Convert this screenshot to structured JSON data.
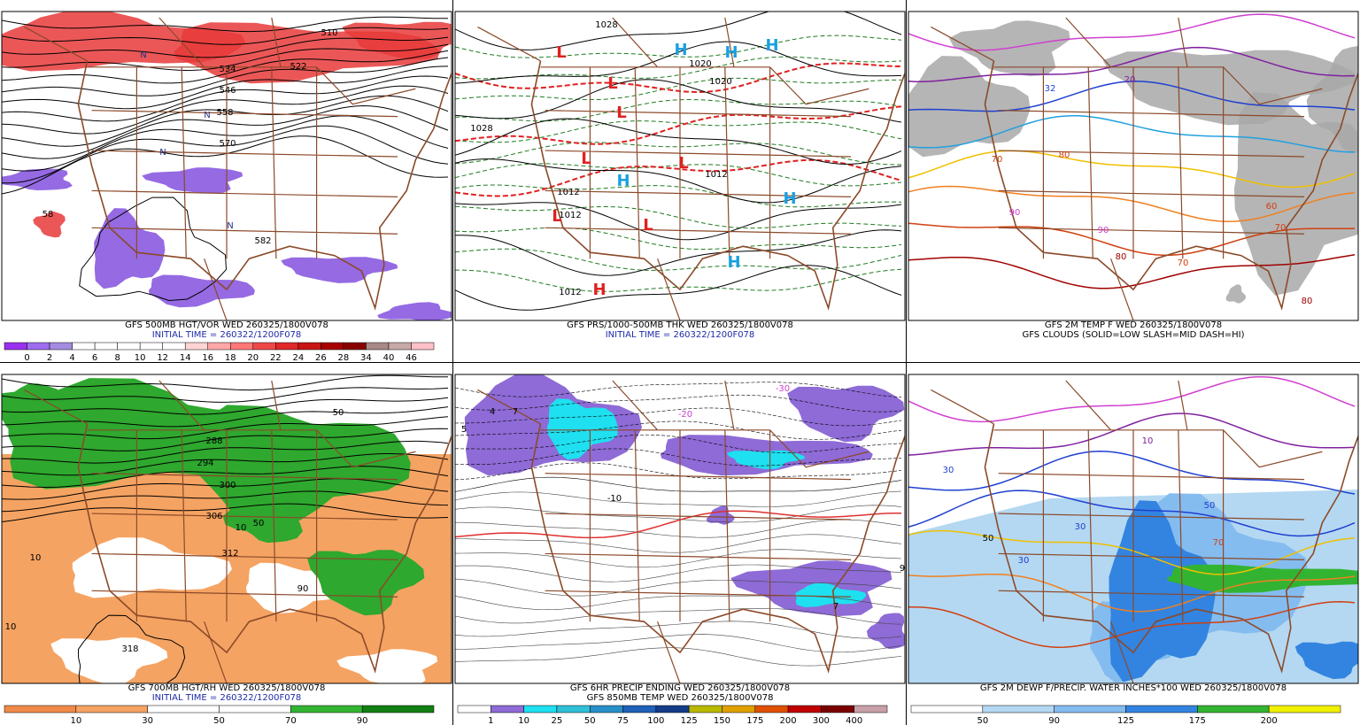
{
  "panels": [
    {
      "captions": [
        "GFS 500MB HGT/VOR WED 260325/1800V078",
        "INITIAL TIME = 260322/1200F078"
      ],
      "map_labels": [
        "510",
        "522",
        "534",
        "546",
        "558",
        "570",
        "582",
        "58",
        "N",
        "N",
        "N",
        "N"
      ],
      "colorbar": {
        "labels": [
          "0",
          "2",
          "4",
          "6",
          "8",
          "10",
          "12",
          "14",
          "16",
          "18",
          "20",
          "22",
          "24",
          "26",
          "28",
          "34",
          "40",
          "46"
        ],
        "colors": [
          "#9a30f0",
          "#9e6cf0",
          "#a48ce0",
          "#ffffff",
          "#ffffff",
          "#ffffff",
          "#ffffff",
          "#ffffff",
          "#ffd4d4",
          "#ffa8a8",
          "#ff7878",
          "#f04848",
          "#e02828",
          "#c81414",
          "#a80000",
          "#880000",
          "#a88888",
          "#c8a8a8",
          "#ffc0c8"
        ]
      }
    },
    {
      "captions": [
        "GFS PRS/1000-500MB THK WED 260325/1800V078",
        "INITIAL TIME = 260322/1200F078"
      ],
      "map_labels": [
        "1028",
        "1020",
        "1020",
        "1012",
        "1012",
        "1012",
        "1012",
        "1028",
        "L",
        "L",
        "L",
        "L",
        "L",
        "L",
        "L",
        "H",
        "H",
        "H",
        "H",
        "H",
        "H",
        "H"
      ]
    },
    {
      "captions": [
        "GFS 2M TEMP F WED 260325/1800V078",
        "GFS CLOUDS (SOLID=LOW SLASH=MID DASH=HI)"
      ],
      "map_labels": [
        "70",
        "80",
        "90",
        "90",
        "80",
        "70",
        "70",
        "32",
        "20",
        "60",
        "80"
      ]
    },
    {
      "captions": [
        "GFS 700MB HGT/RH WED 260325/1800V078",
        "INITIAL TIME = 260322/1200F078"
      ],
      "map_labels": [
        "288",
        "294",
        "300",
        "306",
        "312",
        "318",
        "50",
        "50",
        "10",
        "10",
        "90",
        "10"
      ],
      "colorbar": {
        "labels": [
          "10",
          "30",
          "50",
          "70",
          "90"
        ],
        "colors": [
          "#f08a48",
          "#f5a362",
          "#ffffff",
          "#ffffff",
          "#32b432",
          "#128012"
        ]
      }
    },
    {
      "captions": [
        "GFS 6HR PRECIP ENDING WED 260325/1800V078",
        "GFS 850MB TEMP WED 260325/1800V078"
      ],
      "map_labels": [
        "4",
        "7",
        "5",
        "-20",
        "-30",
        "9",
        "7",
        "-10"
      ],
      "colorbar": {
        "labels": [
          "1",
          "10",
          "25",
          "50",
          "75",
          "100",
          "125",
          "150",
          "175",
          "200",
          "300",
          "400"
        ],
        "colors": [
          "#ffffff",
          "#8e6bd6",
          "#1ee0f0",
          "#30c0d8",
          "#2890c8",
          "#2060b8",
          "#143c88",
          "#b8b800",
          "#e0a000",
          "#e05000",
          "#c00000",
          "#7a0000",
          "#c8a0a8"
        ]
      }
    },
    {
      "captions": [
        "GFS 2M DEWP F/PRECIP. WATER INCHES*100 WED 260325/1800V078"
      ],
      "map_labels": [
        "30",
        "30",
        "50",
        "50",
        "10",
        "70",
        "30"
      ],
      "colorbar": {
        "labels": [
          "50",
          "90",
          "125",
          "175",
          "200"
        ],
        "colors": [
          "#ffffff",
          "#b4d8f2",
          "#84bcf0",
          "#3284e0",
          "#32b432",
          "#f0f000"
        ]
      }
    }
  ]
}
